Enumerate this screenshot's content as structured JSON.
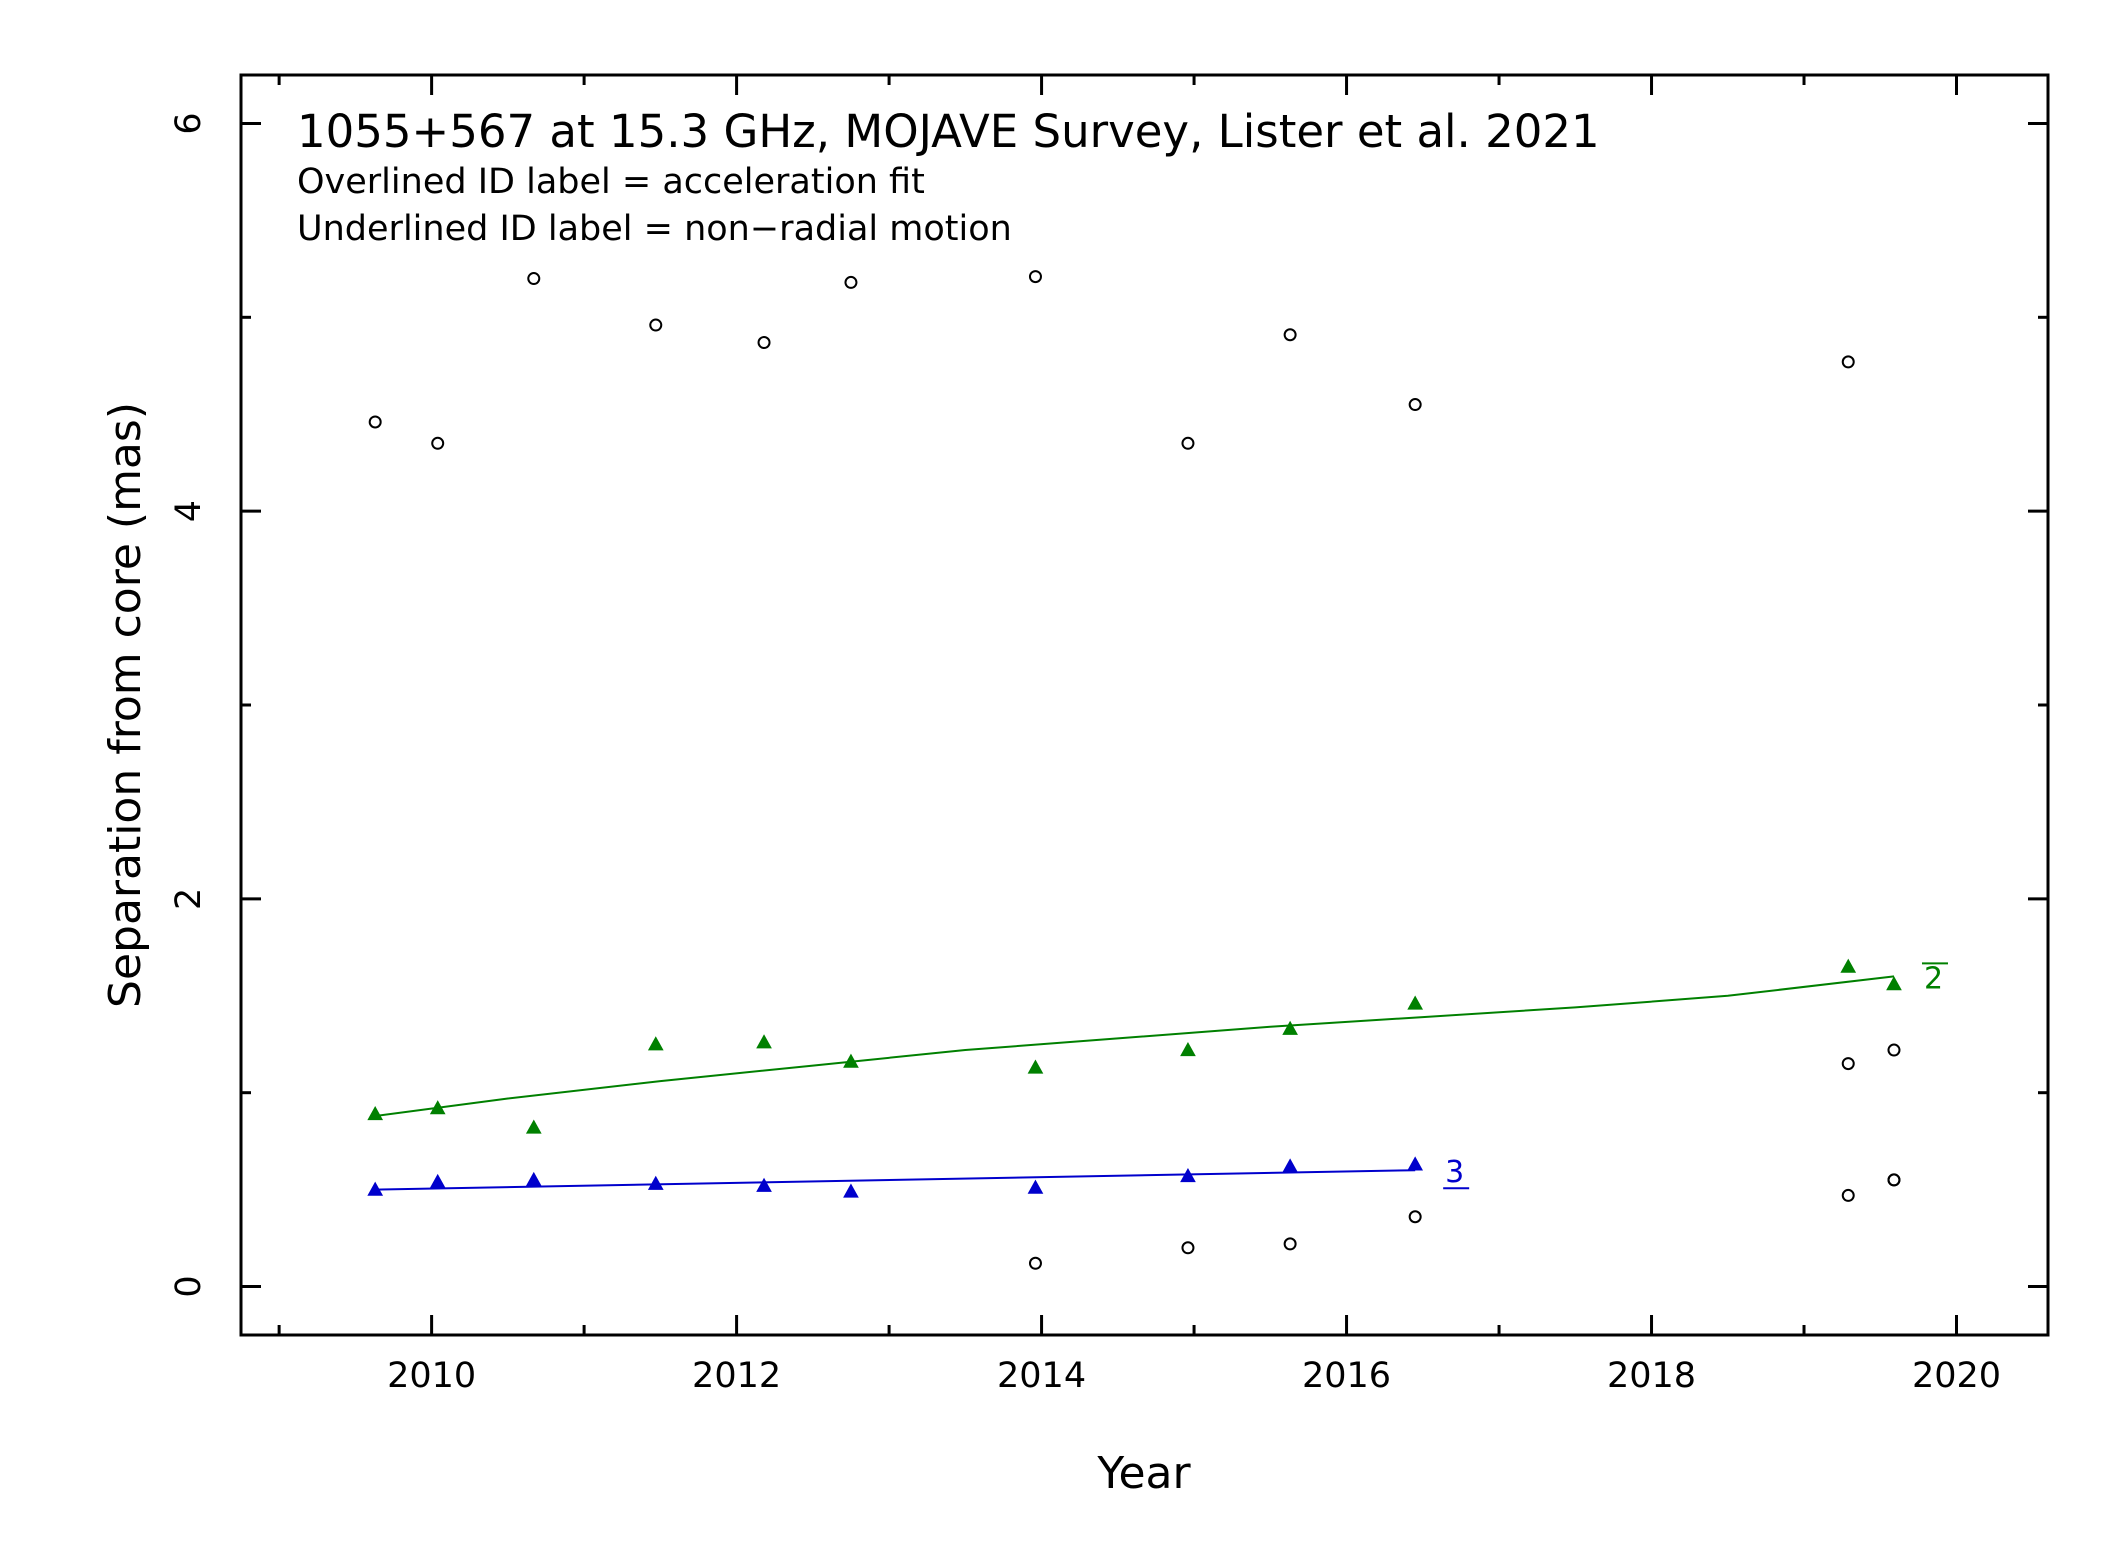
{
  "chart_data": {
    "type": "scatter",
    "title": "1055+567 at 15.3 GHz, MOJAVE Survey, Lister et al. 2021",
    "notes": [
      "Overlined ID label = acceleration fit",
      "Underlined ID label = non−radial motion"
    ],
    "xlabel": "Year",
    "ylabel": "Separation from core (mas)",
    "xlim": [
      2008.75,
      2020.6
    ],
    "ylim": [
      -0.25,
      6.25
    ],
    "xticks": [
      2010,
      2012,
      2014,
      2016,
      2018,
      2020
    ],
    "yticks": [
      0,
      2,
      4,
      6
    ],
    "xticks_minor": [
      2009,
      2011,
      2013,
      2015,
      2017,
      2019
    ],
    "yticks_minor": [
      1,
      3,
      5
    ],
    "grid": false,
    "colors": {
      "component_2": "#008000",
      "component_3": "#0000cc",
      "other": "#000000"
    },
    "series": [
      {
        "name": "2",
        "label_style": "overline",
        "marker": "triangle",
        "color": "#008000",
        "x": [
          2009.63,
          2010.04,
          2010.67,
          2011.47,
          2012.18,
          2012.75,
          2013.96,
          2014.96,
          2015.63,
          2016.45,
          2019.29,
          2019.59
        ],
        "y": [
          0.89,
          0.92,
          0.82,
          1.25,
          1.26,
          1.16,
          1.13,
          1.22,
          1.33,
          1.46,
          1.65,
          1.56
        ],
        "fit": {
          "x": [
            2009.63,
            2010.5,
            2011.5,
            2012.5,
            2013.5,
            2014.5,
            2015.5,
            2016.5,
            2017.5,
            2018.5,
            2019.59
          ],
          "y": [
            0.88,
            0.97,
            1.06,
            1.14,
            1.22,
            1.28,
            1.34,
            1.39,
            1.44,
            1.5,
            1.6
          ]
        }
      },
      {
        "name": "3",
        "label_style": "underline",
        "marker": "triangle",
        "color": "#0000cc",
        "x": [
          2009.63,
          2010.04,
          2010.67,
          2011.47,
          2012.18,
          2012.75,
          2013.96,
          2014.96,
          2015.63,
          2016.45
        ],
        "y": [
          0.5,
          0.54,
          0.55,
          0.53,
          0.52,
          0.49,
          0.51,
          0.57,
          0.62,
          0.63
        ],
        "fit": {
          "x": [
            2009.63,
            2016.45
          ],
          "y": [
            0.5,
            0.6
          ]
        }
      },
      {
        "marker": "circle",
        "color": "#000000",
        "x": [
          2009.63,
          2010.04,
          2010.67,
          2011.47,
          2012.18,
          2012.75,
          2013.96,
          2014.96,
          2015.63,
          2016.45,
          2019.29,
          2019.59,
          2013.96,
          2014.96,
          2015.63,
          2016.45,
          2019.29,
          2019.59,
          2019.29,
          2019.59
        ],
        "y": [
          4.46,
          4.35,
          5.2,
          4.96,
          4.87,
          5.18,
          5.21,
          4.35,
          4.91,
          4.55,
          4.77,
          1.22,
          0.12,
          0.2,
          0.22,
          0.36,
          1.15,
          0.55,
          0.47,
          0.55
        ]
      }
    ]
  }
}
